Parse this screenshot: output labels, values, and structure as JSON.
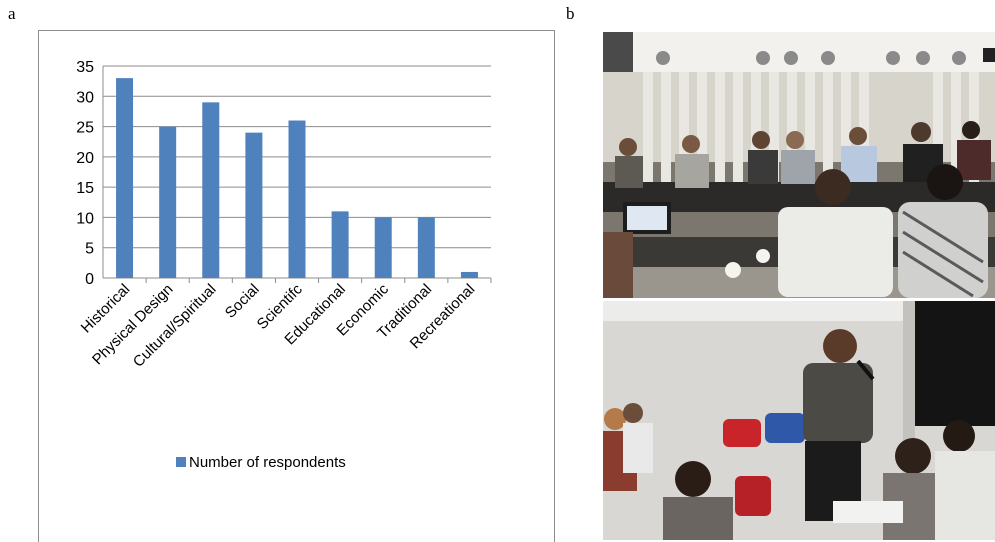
{
  "panels": {
    "a": "a",
    "b": "b"
  },
  "chart_data": {
    "type": "bar",
    "categories": [
      "Historical",
      "Physical Design",
      "Cultural/Spiritual",
      "Social",
      "Scientifc",
      "Educational",
      "Economic",
      "Traditional",
      "Recreational"
    ],
    "series": [
      {
        "name": "Number of respondents",
        "values": [
          33,
          25,
          29,
          24,
          26,
          11,
          10,
          10,
          1
        ]
      }
    ],
    "ylim": [
      0,
      35
    ],
    "yticks": [
      0,
      5,
      10,
      15,
      20,
      25,
      30,
      35
    ],
    "grid": true,
    "legend_position": "bottom",
    "bar_color": "#4f81bd",
    "title": "",
    "xlabel": "",
    "ylabel": ""
  }
}
